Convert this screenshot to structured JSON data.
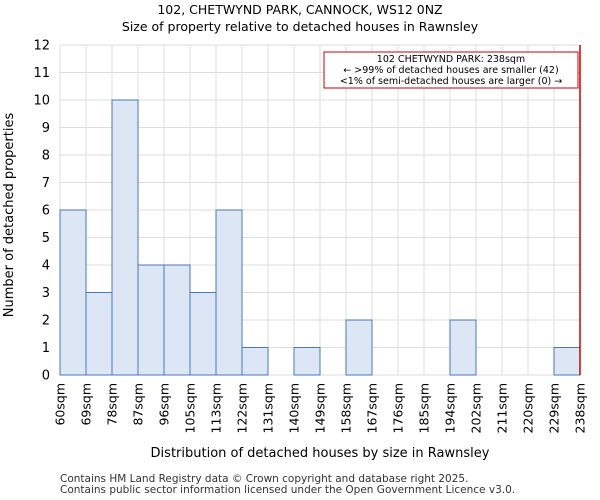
{
  "chart_data": {
    "type": "bar",
    "title": "102, CHETWYND PARK, CANNOCK, WS12 0NZ",
    "subtitle": "Size of property relative to detached houses in Rawnsley",
    "xlabel": "Distribution of detached houses by size in Rawnsley",
    "ylabel": "Number of detached properties",
    "bin_edges": [
      "60sqm",
      "69sqm",
      "78sqm",
      "87sqm",
      "96sqm",
      "105sqm",
      "113sqm",
      "122sqm",
      "131sqm",
      "140sqm",
      "149sqm",
      "158sqm",
      "167sqm",
      "176sqm",
      "185sqm",
      "194sqm",
      "202sqm",
      "211sqm",
      "220sqm",
      "229sqm",
      "238sqm"
    ],
    "values": [
      6,
      3,
      10,
      4,
      4,
      3,
      6,
      1,
      0,
      1,
      0,
      2,
      0,
      0,
      0,
      2,
      0,
      0,
      0,
      1
    ],
    "ylim": [
      0,
      12
    ],
    "yticks": [
      0,
      1,
      2,
      3,
      4,
      5,
      6,
      7,
      8,
      9,
      10,
      11,
      12
    ],
    "marker_bin_index": 20,
    "annotation": [
      "102 CHETWYND PARK: 238sqm",
      "← >99% of detached houses are smaller (42)",
      "<1% of semi-detached houses are larger (0) →"
    ],
    "colors": {
      "bar_fill": "#dce6f5",
      "bar_stroke": "#4a78b8",
      "marker": "#cc0000",
      "grid": "#dddddd"
    }
  },
  "footer": {
    "line1": "Contains HM Land Registry data © Crown copyright and database right 2025.",
    "line2": "Contains public sector information licensed under the Open Government Licence v3.0."
  }
}
